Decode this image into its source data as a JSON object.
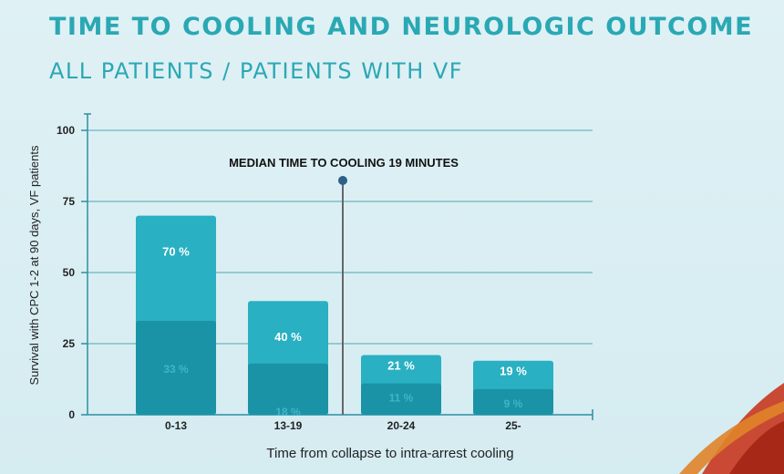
{
  "slide": {
    "title": "TIME TO COOLING AND NEUROLOGIC OUTCOME",
    "subtitle": "ALL PATIENTS / PATIENTS WITH VF"
  },
  "chart_data": {
    "type": "bar",
    "xlabel": "Time from collapse to intra-arrest cooling",
    "ylabel": "Survival with CPC 1-2 at 90 days, VF patients",
    "ylim": [
      0,
      100
    ],
    "yticks": [
      0,
      25,
      50,
      75,
      100
    ],
    "categories": [
      "0-13",
      "13-19",
      "20-24",
      "25-"
    ],
    "series": [
      {
        "values": [
          70,
          40,
          21,
          19
        ],
        "labels": [
          "70 %",
          "40 %",
          "21 %",
          "19 %"
        ],
        "color": "#29b0c2"
      },
      {
        "values": [
          33,
          18,
          11,
          9
        ],
        "labels": [
          "33 %",
          "18 %",
          "11 %",
          "9 %"
        ],
        "color": "#1a93a7"
      }
    ],
    "annotation": {
      "text": "MEDIAN TIME TO COOLING 19 MINUTES",
      "x_value": 19
    },
    "grid": true
  }
}
